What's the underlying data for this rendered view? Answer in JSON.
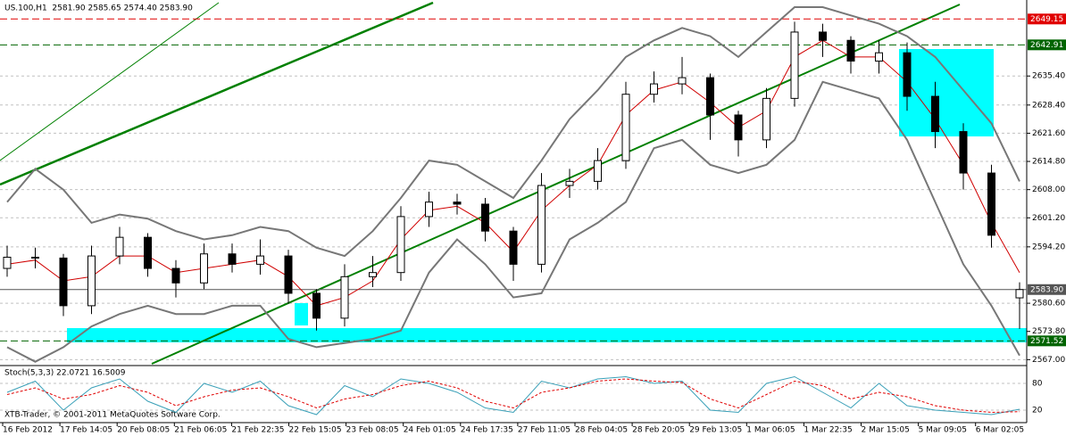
{
  "chart_data": {
    "type": "candlestick",
    "title": "US.100,H1  2581.90 2585.65 2574.40 2583.90",
    "categories": [
      "16 Feb 2012",
      "17 Feb 14:05",
      "20 Feb 08:05",
      "21 Feb 06:05",
      "21 Feb 22:35",
      "22 Feb 15:05",
      "23 Feb 08:05",
      "24 Feb 01:05",
      "24 Feb 17:35",
      "27 Feb 11:05",
      "28 Feb 04:05",
      "28 Feb 20:05",
      "29 Feb 13:05",
      "1 Mar 06:05",
      "1 Mar 22:35",
      "2 Mar 15:05",
      "5 Mar 09:05",
      "6 Mar 02:05"
    ],
    "open": [
      2589.0,
      2591.7,
      2591.5,
      2580.0,
      2592.0,
      2596.5,
      2589.0,
      2585.5,
      2592.5,
      2590.0,
      2592.0,
      2583.0,
      2577.0,
      2587.0,
      2588.0,
      2601.5,
      2605.0,
      2604.5,
      2598.0,
      2590.0,
      2609.0,
      2610.0,
      2615.0,
      2631.0,
      2633.5,
      2635.0,
      2626.0,
      2620.0,
      2630.0,
      2646.0,
      2644.0,
      2639.0,
      2641.0,
      2630.5,
      2622.0,
      2612.0,
      2581.9
    ],
    "high": [
      2594.5,
      2594.0,
      2592.5,
      2594.5,
      2599.0,
      2597.5,
      2591.0,
      2595.0,
      2595.0,
      2596.0,
      2593.5,
      2584.0,
      2590.0,
      2592.0,
      2604.0,
      2607.5,
      2607.0,
      2606.0,
      2599.0,
      2612.0,
      2613.0,
      2618.0,
      2634.0,
      2636.5,
      2640.0,
      2636.0,
      2627.0,
      2632.5,
      2648.5,
      2648.0,
      2645.0,
      2644.0,
      2643.5,
      2634.0,
      2624.0,
      2614.0,
      2585.65
    ],
    "low": [
      2587.0,
      2589.0,
      2577.5,
      2578.0,
      2590.0,
      2587.0,
      2582.0,
      2584.0,
      2588.0,
      2587.5,
      2580.5,
      2574.0,
      2575.0,
      2584.5,
      2586.0,
      2599.0,
      2602.0,
      2595.5,
      2586.0,
      2588.0,
      2606.0,
      2608.0,
      2613.0,
      2629.0,
      2631.0,
      2620.0,
      2616.0,
      2618.0,
      2628.0,
      2640.0,
      2636.0,
      2636.0,
      2627.0,
      2618.0,
      2608.0,
      2594.0,
      2574.4
    ],
    "close": [
      2591.7,
      2591.5,
      2580.0,
      2592.0,
      2596.5,
      2589.0,
      2585.5,
      2592.5,
      2590.0,
      2592.0,
      2583.0,
      2577.0,
      2587.0,
      2588.0,
      2601.5,
      2605.0,
      2604.5,
      2598.0,
      2590.0,
      2609.0,
      2610.0,
      2615.0,
      2631.0,
      2633.5,
      2635.0,
      2626.0,
      2620.0,
      2630.0,
      2646.0,
      2644.0,
      2639.0,
      2641.0,
      2630.5,
      2622.0,
      2612.0,
      2597.0,
      2583.9
    ],
    "up_color": "#ffffff",
    "down_color": "#000000",
    "bands": {
      "color": "#777777",
      "upper": [
        2605,
        2613,
        2608,
        2600,
        2602,
        2601,
        2598,
        2596,
        2597,
        2599,
        2598,
        2594,
        2592,
        2598,
        2606,
        2615,
        2614,
        2610,
        2606,
        2615,
        2625,
        2632,
        2640,
        2644,
        2647,
        2645,
        2640,
        2646,
        2652,
        2652,
        2650,
        2648,
        2645,
        2640,
        2632,
        2624,
        2610
      ],
      "lower": [
        2570,
        2566.5,
        2570,
        2575,
        2578,
        2580,
        2578,
        2578,
        2580,
        2580,
        2572,
        2570,
        2571,
        2572,
        2574,
        2588,
        2596,
        2590,
        2582,
        2583,
        2596,
        2600,
        2605,
        2618,
        2620,
        2614,
        2612,
        2614,
        2620,
        2634,
        2632,
        2630,
        2620,
        2605,
        2590,
        2580,
        2568
      ]
    },
    "ma": {
      "color": "#d00000",
      "values": [
        2590,
        2591,
        2586,
        2587,
        2592,
        2592,
        2588,
        2589,
        2590,
        2591,
        2587,
        2580,
        2582,
        2586,
        2596,
        2603,
        2604,
        2600,
        2593,
        2603,
        2609,
        2614,
        2626,
        2632,
        2634,
        2629,
        2623,
        2627,
        2640,
        2644,
        2640,
        2640,
        2634,
        2625,
        2614,
        2600,
        2588
      ]
    },
    "ylim": [
      2566.0,
      2653.3
    ],
    "yticks": [
      {
        "value": 2567.0,
        "label": "2567.00"
      },
      {
        "value": 2573.8,
        "label": "2573.80"
      },
      {
        "value": 2580.6,
        "label": "2580.60"
      },
      {
        "value": 2594.2,
        "label": "2594.20"
      },
      {
        "value": 2601.2,
        "label": "2601.20"
      },
      {
        "value": 2608.0,
        "label": "2608.00"
      },
      {
        "value": 2614.8,
        "label": "2614.80"
      },
      {
        "value": 2621.6,
        "label": "2621.60"
      },
      {
        "value": 2628.4,
        "label": "2628.40"
      },
      {
        "value": 2635.4,
        "label": "2635.40"
      }
    ],
    "grid": true,
    "price_lines": [
      {
        "value": 2649.15,
        "label": "2649.15",
        "color": "#e00000",
        "dash": true
      },
      {
        "value": 2642.91,
        "label": "2642.91",
        "color": "#006400",
        "dash": true
      },
      {
        "value": 2583.9,
        "label": "2583.90",
        "color": "#555555",
        "dash": false
      },
      {
        "value": 2571.52,
        "label": "2571.52",
        "color": "#006400",
        "dash": true
      }
    ],
    "stochastic": {
      "title": "Stoch(5,3,3) 22.0721 16.5009",
      "k_color": "#3aa0b8",
      "d_color": "#e00000",
      "k": [
        60,
        85,
        20,
        70,
        90,
        40,
        15,
        80,
        60,
        85,
        30,
        10,
        75,
        50,
        90,
        80,
        60,
        25,
        15,
        85,
        70,
        90,
        95,
        80,
        85,
        20,
        15,
        80,
        95,
        60,
        25,
        80,
        30,
        20,
        15,
        10,
        22.0721
      ],
      "d": [
        55,
        70,
        45,
        55,
        75,
        60,
        30,
        50,
        65,
        70,
        50,
        25,
        45,
        55,
        75,
        85,
        70,
        40,
        25,
        60,
        70,
        85,
        90,
        85,
        82,
        45,
        25,
        55,
        85,
        75,
        45,
        60,
        50,
        30,
        20,
        15,
        16.5009
      ],
      "ylim": [
        0,
        100
      ],
      "yticks": [
        20,
        80
      ]
    }
  },
  "footer": "XTB-Trader, © 2001-2011 MetaQuotes Software Corp."
}
